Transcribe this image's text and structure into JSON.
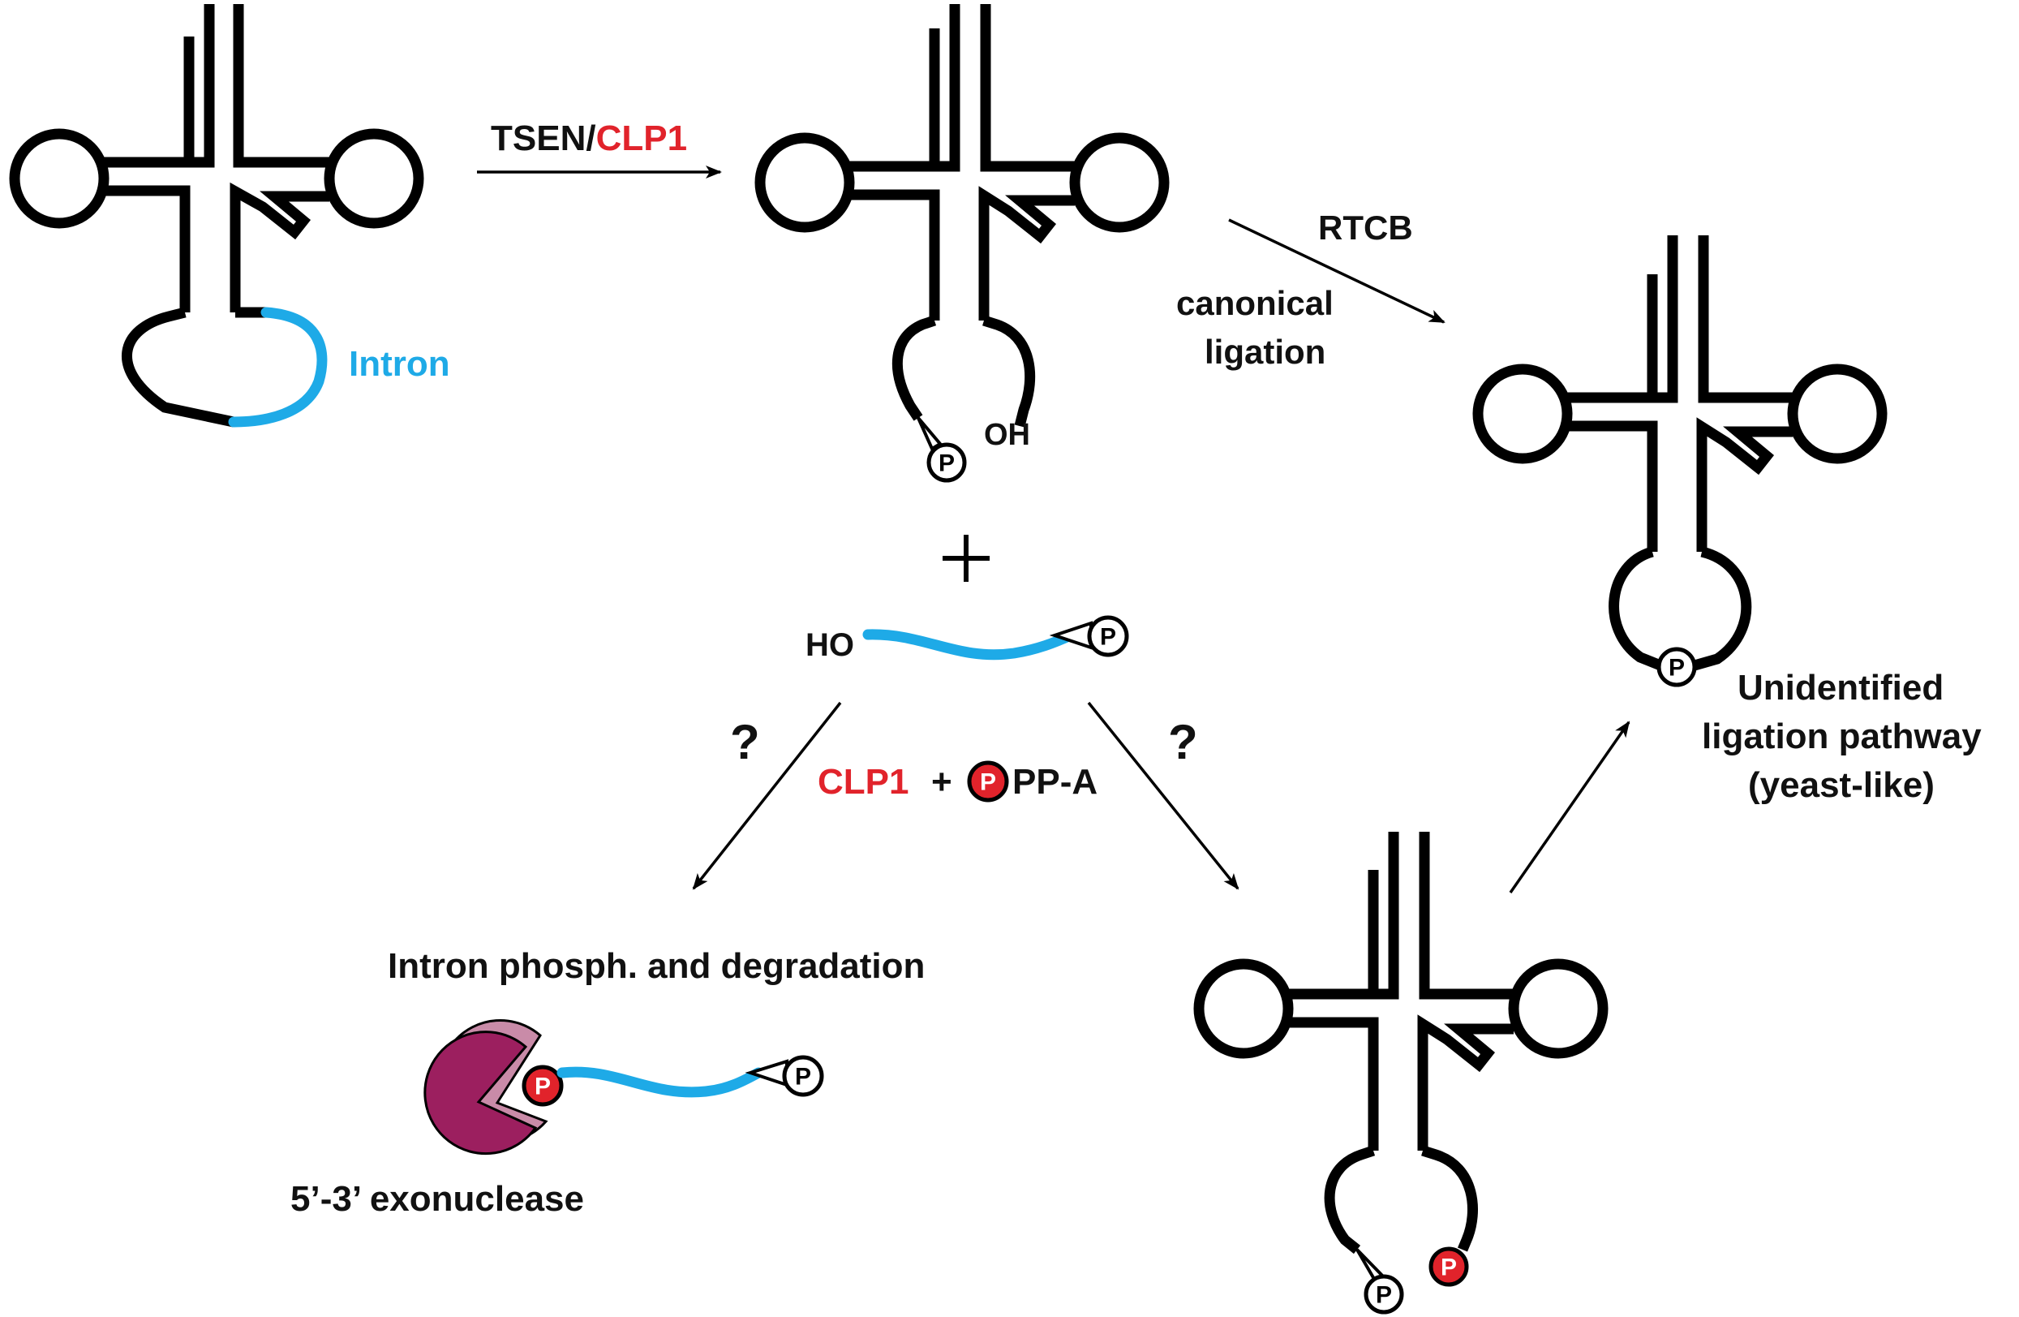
{
  "labels": {
    "intron": "Intron",
    "tsen": "TSEN/",
    "clp1_top": "CLP1",
    "oh": "OH",
    "plus": "+",
    "ho": "HO",
    "rtcb": "RTCB",
    "canonical_line1": "canonical",
    "canonical_line2": "ligation",
    "q_left": "?",
    "q_right": "?",
    "clp1_mid": "CLP1",
    "plus_small": "+",
    "ppa": "PP-A",
    "intron_degradation": "Intron phosph. and degradation",
    "exonuclease": "5’-3’ exonuclease",
    "unidentified_line1": "Unidentified",
    "unidentified_line2": "ligation pathway",
    "unidentified_line3": "(yeast-like)",
    "phosphate": "P"
  },
  "colors": {
    "red": "#e1232b",
    "intron_blue": "#1eaae7",
    "exonuclease_fill": "#9c1f5f",
    "exonuclease_shadow": "#c98ba8"
  }
}
